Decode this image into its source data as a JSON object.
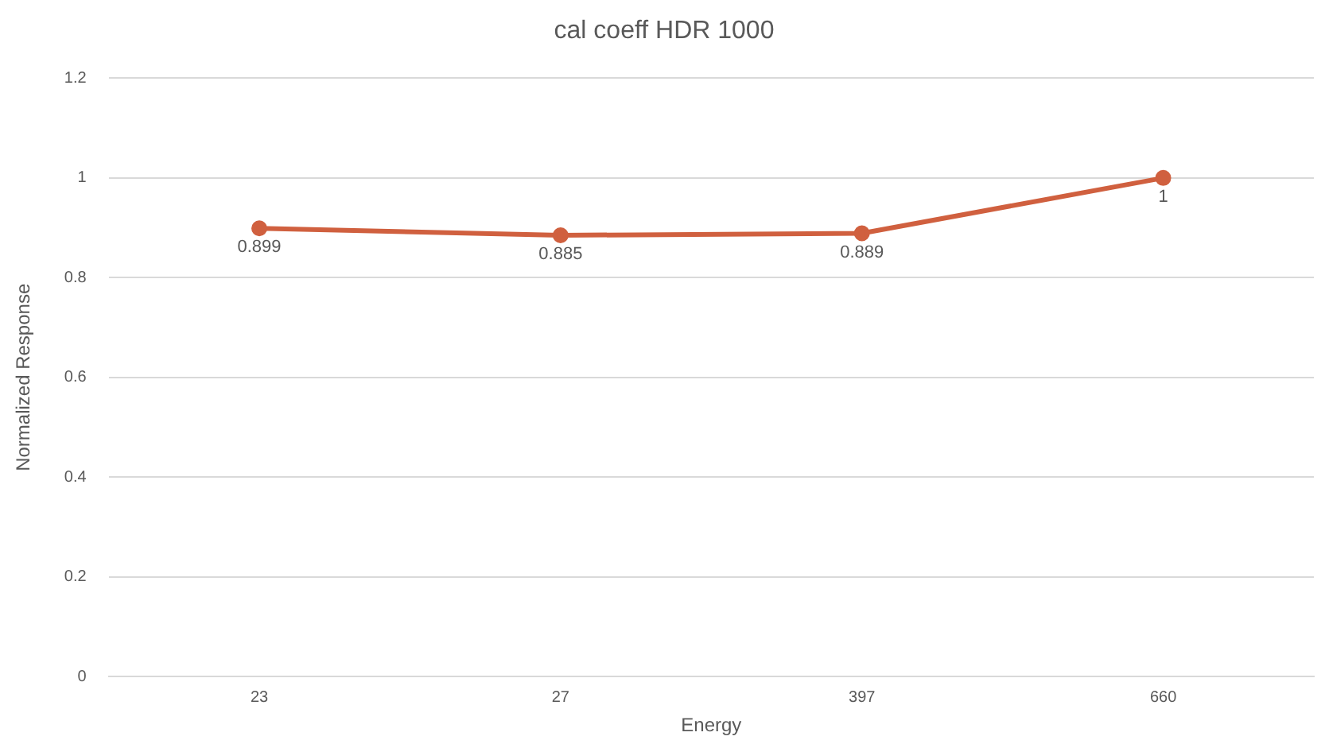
{
  "chart_data": {
    "type": "line",
    "title": "cal coeff HDR 1000",
    "xlabel": "Energy",
    "ylabel": "Normalized Response",
    "categories": [
      "23",
      "27",
      "397",
      "660"
    ],
    "series": [
      {
        "color": "#d0603f",
        "values": [
          0.899,
          0.885,
          0.889,
          1
        ]
      }
    ],
    "ylim": [
      0,
      1.2
    ],
    "yticks": [
      0,
      0.2,
      0.4,
      0.6,
      0.8,
      1,
      1.2
    ],
    "grid": "y",
    "legend": false,
    "marker": "circle",
    "data_labels": true
  }
}
